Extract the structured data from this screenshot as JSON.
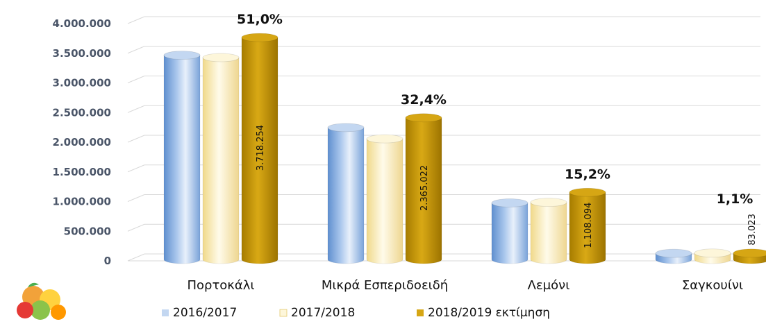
{
  "chart_data": {
    "type": "bar",
    "categories": [
      "Πορτοκάλι",
      "Μικρά Εσπεριδοειδή",
      "Λεμόνι",
      "Σαγκουίνι"
    ],
    "series": [
      {
        "name": "2016/2017",
        "values": [
          3420000,
          2200000,
          930000,
          80000
        ],
        "color": "#7fa7d8"
      },
      {
        "name": "2017/2018",
        "values": [
          3380000,
          2010000,
          940000,
          85000
        ],
        "color": "#f6e7a8"
      },
      {
        "name": "2018/2019 εκτίμηση",
        "values": [
          3718254,
          2365022,
          1108094,
          83023
        ],
        "color": "#c79a0a"
      }
    ],
    "data_labels": [
      "3.718.254",
      "2.365.022",
      "1.108.094",
      "83.023"
    ],
    "share_labels": [
      "51,0%",
      "32,4%",
      "15,2%",
      "1,1%"
    ],
    "y_ticks": [
      "0",
      "500.000",
      "1.000.000",
      "1.500.000",
      "2.000.000",
      "2.500.000",
      "3.000.000",
      "3.500.000",
      "4.000.000"
    ],
    "ylim": [
      0,
      4000000
    ],
    "title": "",
    "xlabel": "",
    "ylabel": "",
    "grid": true,
    "legend_position": "bottom",
    "logo_icon": "citrus-fruits-icon"
  }
}
